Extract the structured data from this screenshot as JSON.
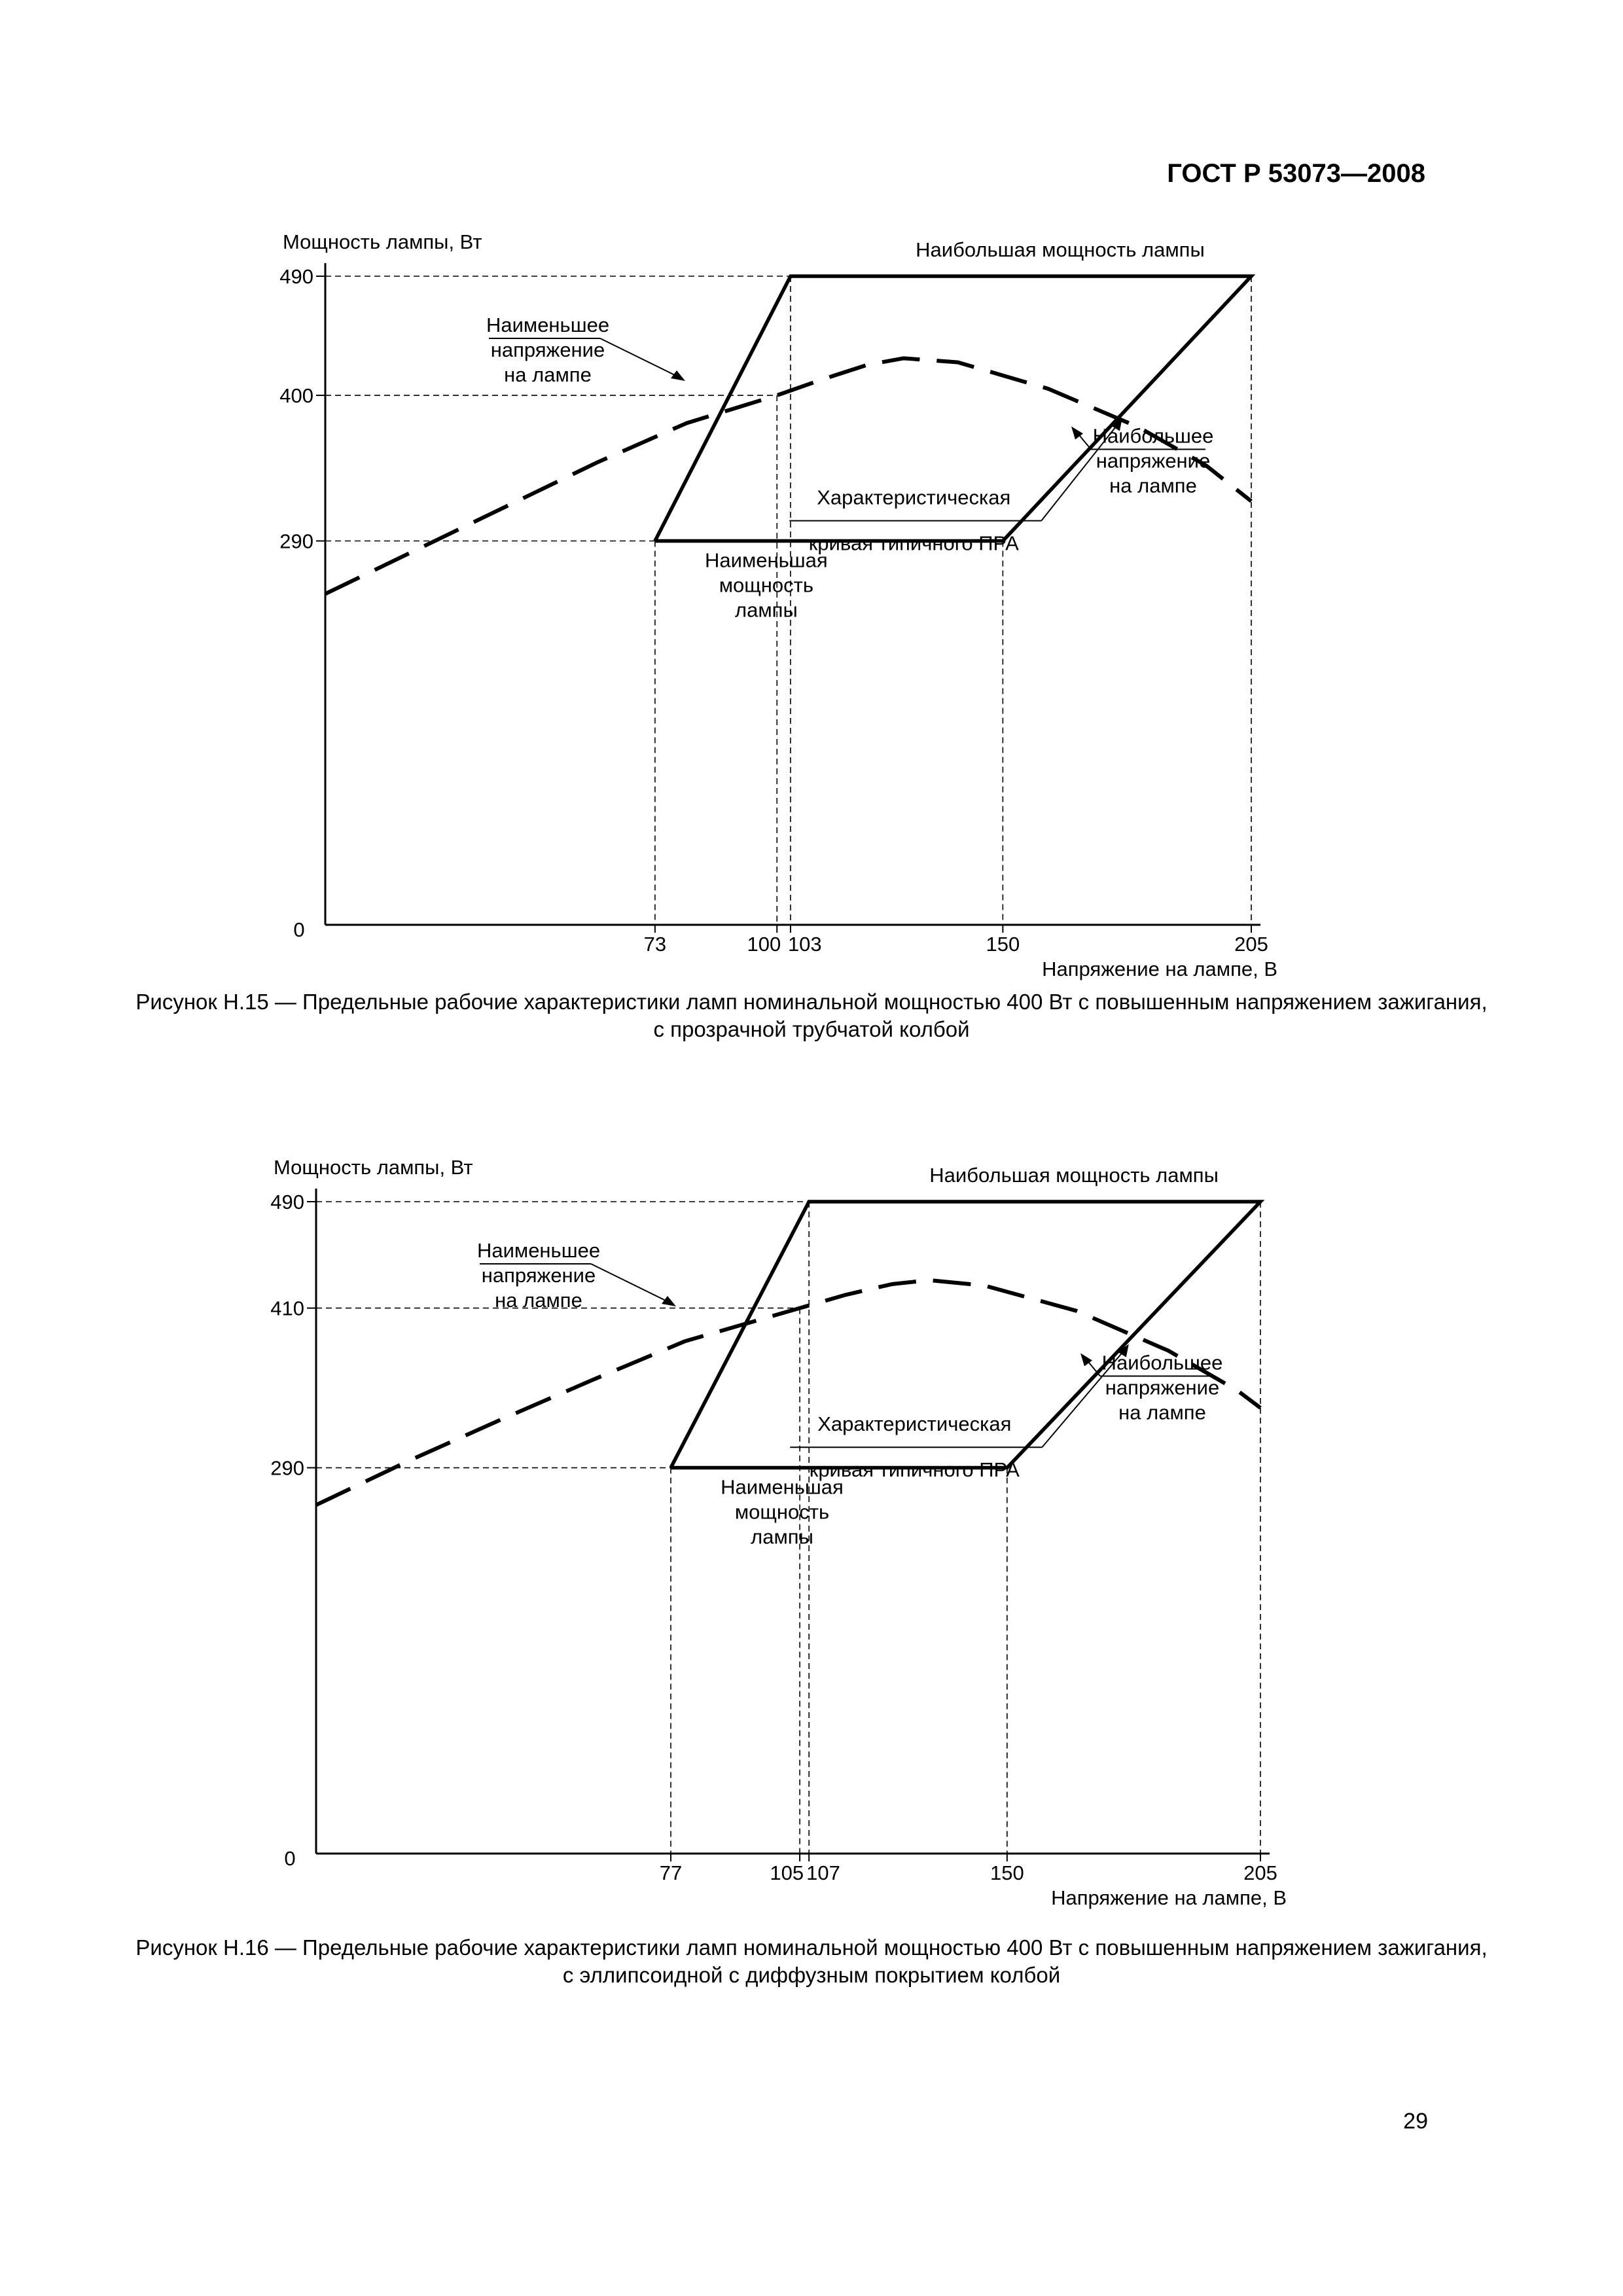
{
  "page": {
    "header": "ГОСТ Р 53073—2008",
    "page_number": "29"
  },
  "captions": [
    "Рисунок Н.15 — Предельные рабочие характеристики ламп номинальной мощностью 400 Вт с повышенным напряжением зажигания, с прозрачной трубчатой колбой",
    "Рисунок Н.16 — Предельные рабочие характеристики ламп номинальной мощностью 400 Вт с повышенным напряжением зажигания, с эллипсоидной с диффузным покрытием колбой"
  ],
  "chart_data": [
    {
      "type": "line",
      "ylabel": "Мощность лампы, Вт",
      "xlabel": "Напряжение на лампе, В",
      "origin_label": "0",
      "x_ticks": [
        "73",
        "100",
        "103",
        "150",
        "205"
      ],
      "y_ticks": [
        "290",
        "400",
        "490"
      ],
      "xlim": [
        0,
        205
      ],
      "ylim": [
        0,
        490
      ],
      "grid": false,
      "envelope": {
        "points": [
          [
            73,
            290
          ],
          [
            103,
            490
          ],
          [
            205,
            490
          ],
          [
            150,
            290
          ],
          [
            73,
            290
          ]
        ],
        "labels": {
          "top": "Наибольшая мощность лампы",
          "bottom": [
            "Наименьшая",
            "мощность",
            "лампы"
          ],
          "left": [
            "Наименьшее",
            "напряжение",
            "на лампе"
          ],
          "right": [
            "Наибольшее",
            "напряжение",
            "на лампе"
          ]
        }
      },
      "series": [
        {
          "label": [
            "Характеристическая",
            "кривая типичного ПРА"
          ],
          "style": "dashed",
          "x": [
            0,
            20,
            40,
            60,
            80,
            100,
            110,
            120,
            128,
            140,
            160,
            180,
            195,
            205
          ],
          "y": [
            250,
            283,
            316,
            349,
            379,
            400,
            412,
            423,
            428,
            425,
            405,
            376,
            347,
            320
          ]
        }
      ]
    },
    {
      "type": "line",
      "ylabel": "Мощность лампы, Вт",
      "xlabel": "Напряжение на лампе, В",
      "origin_label": "0",
      "x_ticks": [
        "77",
        "105",
        "107",
        "150",
        "205"
      ],
      "y_ticks": [
        "290",
        "410",
        "490"
      ],
      "xlim": [
        0,
        205
      ],
      "ylim": [
        0,
        490
      ],
      "grid": false,
      "envelope": {
        "points": [
          [
            77,
            290
          ],
          [
            107,
            490
          ],
          [
            205,
            490
          ],
          [
            150,
            290
          ],
          [
            77,
            290
          ]
        ],
        "labels": {
          "top": "Наибольшая мощность лампы",
          "bottom": [
            "Наименьшая",
            "мощность",
            "лампы"
          ],
          "left": [
            "Наименьшее",
            "напряжение",
            "на лампе"
          ],
          "right": [
            "Наибольшее",
            "напряжение",
            "на лампе"
          ]
        }
      },
      "series": [
        {
          "label": [
            "Характеристическая",
            "кривая типичного ПРА"
          ],
          "style": "dashed",
          "x": [
            0,
            20,
            40,
            60,
            80,
            105,
            115,
            125,
            133,
            145,
            165,
            185,
            200,
            205
          ],
          "y": [
            262,
            295,
            326,
            356,
            385,
            410,
            420,
            428,
            431,
            427,
            408,
            378,
            348,
            335
          ]
        }
      ]
    }
  ]
}
